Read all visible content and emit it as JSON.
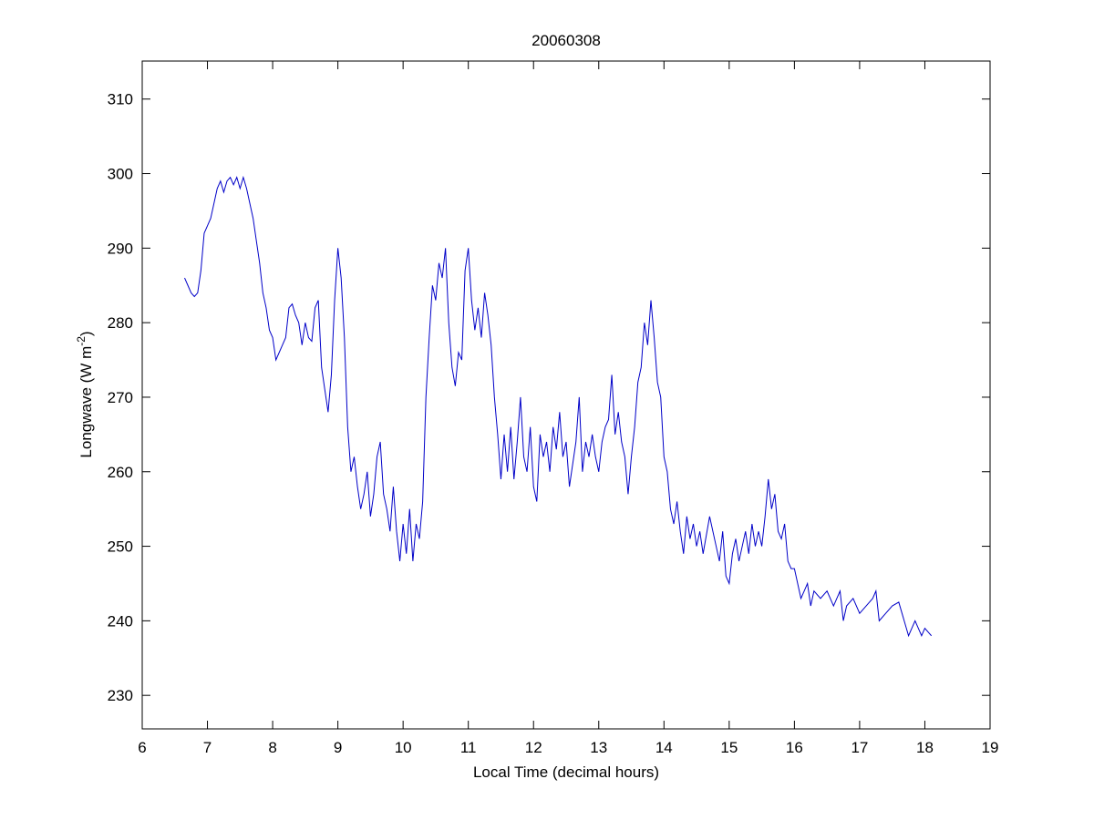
{
  "chart_data": {
    "type": "line",
    "title": "20060308",
    "xlabel": "Local Time (decimal hours)",
    "ylabel": [
      "Longwave (W m",
      "-2",
      ")"
    ],
    "xlim": [
      6,
      19
    ],
    "ylim": [
      225.5,
      315.1
    ],
    "xticks": [
      6,
      7,
      8,
      9,
      10,
      11,
      12,
      13,
      14,
      15,
      16,
      17,
      18,
      19
    ],
    "yticks": [
      230,
      240,
      250,
      260,
      270,
      280,
      290,
      300,
      310
    ],
    "grid": false,
    "series": [
      {
        "color": "#0000c8",
        "x": [
          6.65,
          6.7,
          6.75,
          6.8,
          6.85,
          6.9,
          6.95,
          7.0,
          7.05,
          7.1,
          7.15,
          7.2,
          7.25,
          7.3,
          7.35,
          7.4,
          7.45,
          7.5,
          7.55,
          7.6,
          7.65,
          7.7,
          7.75,
          7.8,
          7.85,
          7.9,
          7.95,
          8.0,
          8.05,
          8.1,
          8.15,
          8.2,
          8.25,
          8.3,
          8.35,
          8.4,
          8.45,
          8.5,
          8.55,
          8.6,
          8.65,
          8.7,
          8.75,
          8.8,
          8.85,
          8.9,
          8.95,
          9.0,
          9.05,
          9.1,
          9.15,
          9.2,
          9.25,
          9.3,
          9.35,
          9.4,
          9.45,
          9.5,
          9.55,
          9.6,
          9.65,
          9.7,
          9.75,
          9.8,
          9.85,
          9.9,
          9.95,
          10.0,
          10.05,
          10.1,
          10.15,
          10.2,
          10.25,
          10.3,
          10.35,
          10.4,
          10.45,
          10.5,
          10.55,
          10.6,
          10.65,
          10.7,
          10.75,
          10.8,
          10.85,
          10.9,
          10.95,
          11.0,
          11.05,
          11.1,
          11.15,
          11.2,
          11.25,
          11.3,
          11.35,
          11.4,
          11.45,
          11.5,
          11.55,
          11.6,
          11.65,
          11.7,
          11.75,
          11.8,
          11.85,
          11.9,
          11.95,
          12.0,
          12.05,
          12.1,
          12.15,
          12.2,
          12.25,
          12.3,
          12.35,
          12.4,
          12.45,
          12.5,
          12.55,
          12.6,
          12.65,
          12.7,
          12.75,
          12.8,
          12.85,
          12.9,
          12.95,
          13.0,
          13.05,
          13.1,
          13.15,
          13.2,
          13.25,
          13.3,
          13.35,
          13.4,
          13.45,
          13.5,
          13.55,
          13.6,
          13.65,
          13.7,
          13.75,
          13.8,
          13.85,
          13.9,
          13.95,
          14.0,
          14.05,
          14.1,
          14.15,
          14.2,
          14.25,
          14.3,
          14.35,
          14.4,
          14.45,
          14.5,
          14.55,
          14.6,
          14.7,
          14.8,
          14.85,
          14.9,
          14.95,
          15.0,
          15.05,
          15.1,
          15.15,
          15.2,
          15.25,
          15.3,
          15.35,
          15.4,
          15.45,
          15.5,
          15.55,
          15.6,
          15.65,
          15.7,
          15.75,
          15.8,
          15.85,
          15.9,
          15.95,
          16.0,
          16.05,
          16.1,
          16.15,
          16.2,
          16.25,
          16.3,
          16.4,
          16.5,
          16.6,
          16.7,
          16.75,
          16.8,
          16.9,
          17.0,
          17.1,
          17.2,
          17.25,
          17.3,
          17.4,
          17.5,
          17.6,
          17.65,
          17.7,
          17.75,
          17.8,
          17.85,
          17.9,
          17.95,
          18.0,
          18.05,
          18.1
        ],
        "values": [
          286,
          285,
          284,
          283.5,
          284,
          287,
          292,
          293,
          294,
          296,
          298,
          299,
          297.5,
          299,
          299.5,
          298.5,
          299.5,
          298,
          299.5,
          298,
          296,
          294,
          291,
          288,
          284,
          282,
          279,
          278,
          275,
          276,
          277,
          278,
          282,
          282.5,
          281,
          280,
          277,
          280,
          278,
          277.5,
          282,
          283,
          274,
          271,
          268,
          273,
          283,
          290,
          286,
          278,
          266,
          260,
          262,
          258,
          255,
          257,
          260,
          254,
          257,
          262,
          264,
          257,
          255,
          252,
          258,
          252,
          248,
          253,
          249,
          255,
          248,
          253,
          251,
          256,
          270,
          278,
          285,
          283,
          288,
          286,
          290,
          280,
          274,
          271.5,
          276,
          275,
          287,
          290,
          283,
          279,
          282,
          278,
          284,
          281,
          277,
          270,
          265,
          259,
          265,
          260,
          266,
          259,
          264,
          270,
          262,
          260,
          266,
          258,
          256,
          265,
          262,
          264,
          260,
          266,
          263,
          268,
          262,
          264,
          258,
          261,
          264,
          270,
          260,
          264,
          262,
          265,
          262,
          260,
          264,
          266,
          267,
          273,
          265,
          268,
          264,
          262,
          257,
          262,
          266,
          272,
          274,
          280,
          277,
          283,
          278,
          272,
          270,
          262,
          260,
          255,
          253,
          256,
          252,
          249,
          254,
          251,
          253,
          250,
          252,
          249,
          254,
          250,
          248,
          252,
          246,
          245,
          249,
          251,
          248,
          250,
          252,
          249,
          253,
          250,
          252,
          250,
          254,
          259,
          255,
          257,
          252,
          251,
          253,
          248,
          247,
          247,
          245,
          243,
          244,
          245,
          242,
          244,
          243,
          244,
          242,
          244,
          240,
          242,
          243,
          241,
          242,
          243,
          244,
          240,
          241,
          242,
          242.5,
          241,
          239.5,
          238,
          239,
          240,
          239,
          238,
          239,
          238.5,
          238
        ]
      }
    ]
  }
}
